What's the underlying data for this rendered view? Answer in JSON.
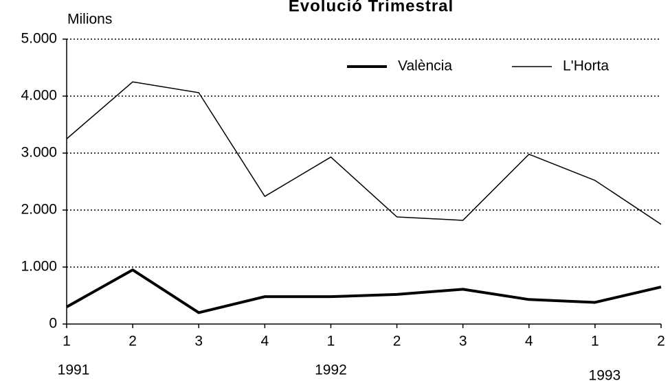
{
  "chart_data": {
    "type": "line",
    "title": "Evolució Trimestral",
    "y_label": "Milions",
    "categories": [
      "1",
      "2",
      "3",
      "4",
      "1",
      "2",
      "3",
      "4",
      "1",
      "2"
    ],
    "years": [
      "1991",
      "1992",
      "1993"
    ],
    "series": [
      {
        "name": "València",
        "color": "#000000",
        "width": 4,
        "values": [
          300,
          950,
          200,
          480,
          480,
          520,
          610,
          430,
          380,
          650
        ]
      },
      {
        "name": "L'Horta",
        "color": "#000000",
        "width": 1.5,
        "values": [
          3250,
          4250,
          4060,
          2240,
          2930,
          1880,
          1820,
          2980,
          2520,
          1750
        ]
      }
    ],
    "ylim": [
      0,
      5000
    ],
    "yticks": [
      0,
      {
        "value": 1000,
        "label": "1.000"
      },
      {
        "value": 2000,
        "label": "2.000"
      },
      {
        "value": 3000,
        "label": "3.000"
      },
      {
        "value": 4000,
        "label": "4.000"
      },
      {
        "value": 5000,
        "label": "5.000"
      }
    ],
    "grid": true,
    "legend": "top-right"
  }
}
